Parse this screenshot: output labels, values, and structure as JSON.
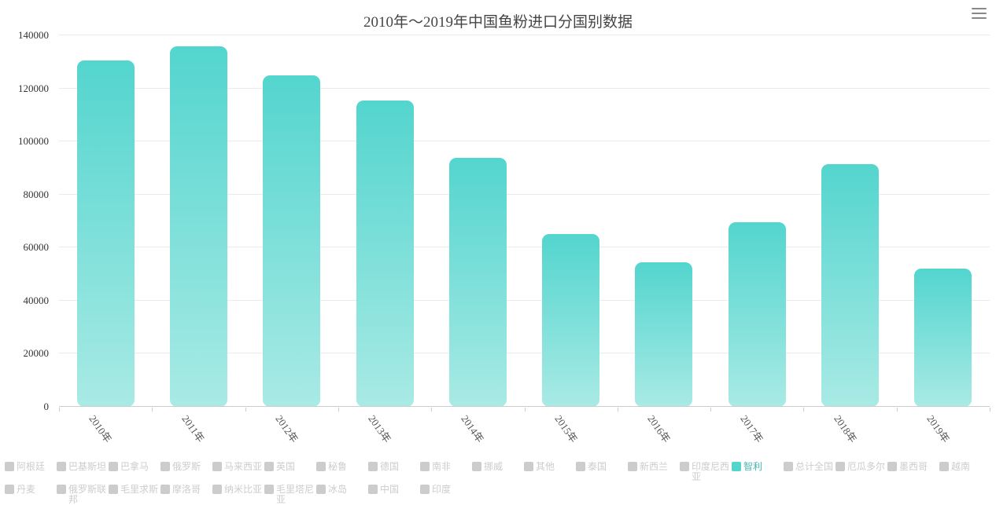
{
  "title": "2010年～2019年中国鱼粉进口分国别数据",
  "toolbox": {
    "menu_icon": "hamburger-menu"
  },
  "colors": {
    "bar_top": "#53d5ce",
    "bar_bottom": "#a9eae5",
    "legend_active": "#53d5ce",
    "legend_active_text": "#45b8b1",
    "legend_inactive": "#cccccc",
    "axis_text": "#333333",
    "xlabel_text": "#555555",
    "grid": "#ebebeb",
    "axis_line": "#cccccc",
    "title_text": "#454545",
    "toolbox_icon": "#888888"
  },
  "chart_data": {
    "type": "bar",
    "title": "2010年～2019年中国鱼粉进口分国别数据",
    "series_name": "智利",
    "categories": [
      "2010年",
      "2011年",
      "2012年",
      "2013年",
      "2014年",
      "2015年",
      "2016年",
      "2017年",
      "2018年",
      "2019年"
    ],
    "values": [
      130600,
      136000,
      124800,
      115500,
      93900,
      65200,
      54500,
      69700,
      91500,
      52200
    ],
    "xlabel": "",
    "ylabel": "",
    "ylim": [
      0,
      140000
    ],
    "y_tick_step": 20000,
    "y_tick_labels": [
      "0",
      "20000",
      "40000",
      "60000",
      "80000",
      "100000",
      "120000",
      "140000"
    ],
    "grid": true,
    "legend_position": "bottom"
  },
  "legend": {
    "items": [
      {
        "label": "阿根廷",
        "active": false
      },
      {
        "label": "巴基斯坦",
        "active": false
      },
      {
        "label": "巴拿马",
        "active": false
      },
      {
        "label": "俄罗斯",
        "active": false
      },
      {
        "label": "马来西亚",
        "active": false
      },
      {
        "label": "英国",
        "active": false
      },
      {
        "label": "秘鲁",
        "active": false
      },
      {
        "label": "德国",
        "active": false
      },
      {
        "label": "南非",
        "active": false
      },
      {
        "label": "挪威",
        "active": false
      },
      {
        "label": "其他",
        "active": false
      },
      {
        "label": "泰国",
        "active": false
      },
      {
        "label": "新西兰",
        "active": false
      },
      {
        "label": "印度尼西亚",
        "active": false
      },
      {
        "label": "智利",
        "active": true
      },
      {
        "label": "总计全国",
        "active": false
      },
      {
        "label": "厄瓜多尔",
        "active": false
      },
      {
        "label": "墨西哥",
        "active": false
      },
      {
        "label": "越南",
        "active": false
      },
      {
        "label": "丹麦",
        "active": false
      },
      {
        "label": "俄罗斯联邦",
        "active": false
      },
      {
        "label": "毛里求斯",
        "active": false
      },
      {
        "label": "摩洛哥",
        "active": false
      },
      {
        "label": "纳米比亚",
        "active": false
      },
      {
        "label": "毛里塔尼亚",
        "active": false
      },
      {
        "label": "冰岛",
        "active": false
      },
      {
        "label": "中国",
        "active": false
      },
      {
        "label": "印度",
        "active": false
      }
    ]
  }
}
